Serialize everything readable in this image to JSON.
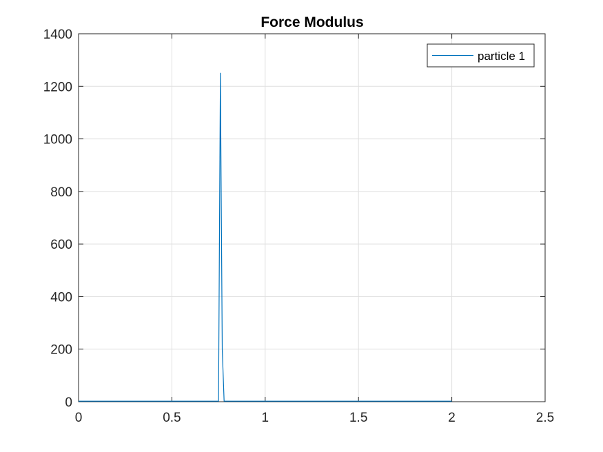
{
  "chart_data": {
    "type": "line",
    "title": "Force Modulus",
    "xlabel": "",
    "ylabel": "",
    "xlim": [
      0,
      2.5
    ],
    "ylim": [
      0,
      1400
    ],
    "xticks": [
      0,
      0.5,
      1,
      1.5,
      2,
      2.5
    ],
    "xtick_labels": [
      "0",
      "0.5",
      "1",
      "1.5",
      "2",
      "2.5"
    ],
    "yticks": [
      0,
      200,
      400,
      600,
      800,
      1000,
      1200,
      1400
    ],
    "ytick_labels": [
      "0",
      "200",
      "400",
      "600",
      "800",
      "1000",
      "1200",
      "1400"
    ],
    "grid": true,
    "legend_position": "top-right",
    "series": [
      {
        "name": "particle 1",
        "color": "#0072bd",
        "x": [
          0,
          0.74,
          0.75,
          0.76,
          0.77,
          0.78,
          2.0
        ],
        "y": [
          2,
          2,
          2,
          1250,
          200,
          2,
          2
        ]
      }
    ]
  }
}
